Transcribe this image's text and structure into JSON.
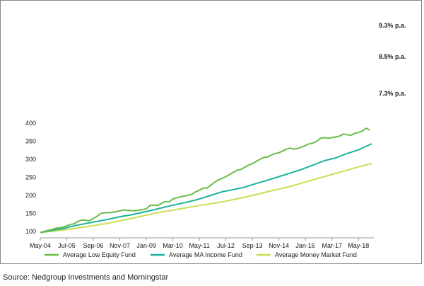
{
  "source": "Source: Nedgroup Investments and Morningstar",
  "chart_data": {
    "type": "line",
    "title": "",
    "xlabel": "",
    "ylabel": "",
    "ylim": [
      95,
      400
    ],
    "yticks": [
      "100",
      "150",
      "200",
      "250",
      "300",
      "350",
      "400"
    ],
    "xticks": [
      "May-04",
      "Jul-05",
      "Sep-06",
      "Nov-07",
      "Jan-09",
      "Mar-10",
      "May-11",
      "Jul-12",
      "Sep-13",
      "Nov-14",
      "Jan-16",
      "Mar-17",
      "May-18"
    ],
    "grid": false,
    "legend_position": "bottom",
    "x_description": "months from May-04 (0) to Dec-18 (175)",
    "series": [
      {
        "name": "Average Low Equity Fund",
        "color": "#6cbb4a",
        "end_label": "9.3% p.a.",
        "points": [
          [
            0,
            97
          ],
          [
            2,
            100
          ],
          [
            4,
            103
          ],
          [
            6,
            105
          ],
          [
            8,
            109
          ],
          [
            10,
            110
          ],
          [
            12,
            112
          ],
          [
            14,
            116
          ],
          [
            16,
            119
          ],
          [
            18,
            122
          ],
          [
            20,
            128
          ],
          [
            22,
            132
          ],
          [
            24,
            131
          ],
          [
            26,
            130
          ],
          [
            28,
            136
          ],
          [
            30,
            142
          ],
          [
            32,
            150
          ],
          [
            34,
            152
          ],
          [
            36,
            152
          ],
          [
            38,
            153
          ],
          [
            40,
            155
          ],
          [
            42,
            157
          ],
          [
            44,
            160
          ],
          [
            46,
            158
          ],
          [
            48,
            158
          ],
          [
            50,
            157
          ],
          [
            52,
            159
          ],
          [
            54,
            160
          ],
          [
            56,
            163
          ],
          [
            58,
            172
          ],
          [
            60,
            173
          ],
          [
            62,
            172
          ],
          [
            64,
            178
          ],
          [
            66,
            183
          ],
          [
            68,
            182
          ],
          [
            70,
            190
          ],
          [
            72,
            193
          ],
          [
            74,
            196
          ],
          [
            76,
            198
          ],
          [
            78,
            200
          ],
          [
            80,
            203
          ],
          [
            82,
            210
          ],
          [
            84,
            214
          ],
          [
            86,
            220
          ],
          [
            88,
            220
          ],
          [
            90,
            228
          ],
          [
            92,
            236
          ],
          [
            94,
            243
          ],
          [
            96,
            247
          ],
          [
            98,
            252
          ],
          [
            100,
            258
          ],
          [
            102,
            264
          ],
          [
            104,
            270
          ],
          [
            106,
            272
          ],
          [
            108,
            278
          ],
          [
            110,
            284
          ],
          [
            112,
            288
          ],
          [
            114,
            294
          ],
          [
            116,
            300
          ],
          [
            118,
            305
          ],
          [
            120,
            306
          ],
          [
            122,
            312
          ],
          [
            124,
            316
          ],
          [
            126,
            318
          ],
          [
            128,
            323
          ],
          [
            130,
            328
          ],
          [
            132,
            331
          ],
          [
            134,
            328
          ],
          [
            136,
            330
          ],
          [
            138,
            334
          ],
          [
            140,
            338
          ],
          [
            142,
            343
          ],
          [
            144,
            345
          ],
          [
            146,
            350
          ],
          [
            148,
            358
          ],
          [
            150,
            360
          ],
          [
            152,
            358
          ],
          [
            154,
            360
          ],
          [
            156,
            362
          ],
          [
            158,
            364
          ],
          [
            160,
            370
          ],
          [
            162,
            368
          ],
          [
            164,
            366
          ],
          [
            166,
            372
          ],
          [
            168,
            374
          ],
          [
            170,
            378
          ],
          [
            172,
            386
          ],
          [
            174,
            381
          ]
        ]
      },
      {
        "name": "Average MA Income Fund",
        "color": "#1ab39a",
        "end_label": "8.5% p.a.",
        "points": [
          [
            0,
            97
          ],
          [
            6,
            103
          ],
          [
            12,
            108
          ],
          [
            18,
            116
          ],
          [
            24,
            122
          ],
          [
            30,
            128
          ],
          [
            36,
            134
          ],
          [
            42,
            141
          ],
          [
            48,
            146
          ],
          [
            54,
            153
          ],
          [
            60,
            160
          ],
          [
            66,
            168
          ],
          [
            72,
            175
          ],
          [
            78,
            182
          ],
          [
            84,
            190
          ],
          [
            90,
            200
          ],
          [
            96,
            210
          ],
          [
            102,
            216
          ],
          [
            108,
            223
          ],
          [
            114,
            233
          ],
          [
            120,
            242
          ],
          [
            126,
            252
          ],
          [
            132,
            262
          ],
          [
            138,
            272
          ],
          [
            144,
            284
          ],
          [
            150,
            296
          ],
          [
            156,
            304
          ],
          [
            162,
            316
          ],
          [
            168,
            326
          ],
          [
            175,
            343
          ]
        ]
      },
      {
        "name": "Average Money Market Fund",
        "color": "#ccde4f",
        "end_label": "7.3% p.a.",
        "points": [
          [
            0,
            97
          ],
          [
            12,
            104
          ],
          [
            24,
            113
          ],
          [
            36,
            123
          ],
          [
            48,
            136
          ],
          [
            60,
            150
          ],
          [
            72,
            161
          ],
          [
            84,
            172
          ],
          [
            96,
            182
          ],
          [
            108,
            195
          ],
          [
            120,
            210
          ],
          [
            132,
            225
          ],
          [
            144,
            243
          ],
          [
            156,
            261
          ],
          [
            168,
            279
          ],
          [
            175,
            288
          ]
        ]
      }
    ]
  }
}
